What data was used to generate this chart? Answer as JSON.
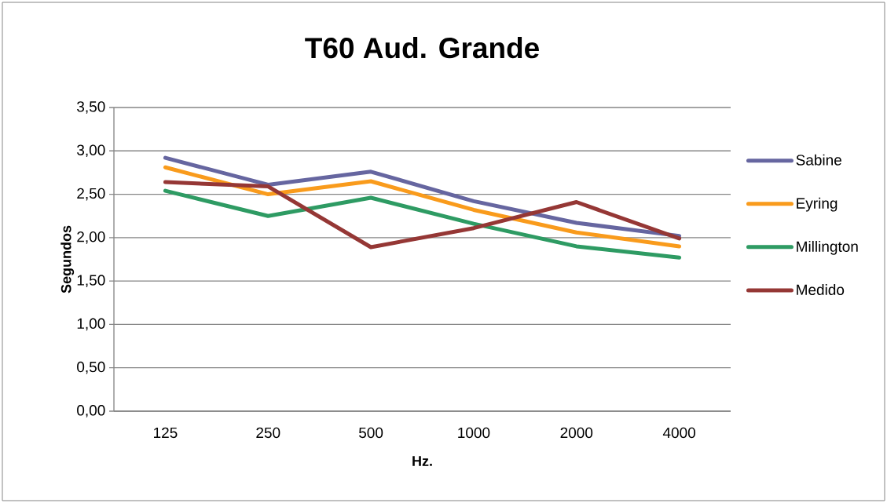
{
  "chart_data": {
    "type": "line",
    "title": "T60 Aud. Grande",
    "xlabel": "Hz.",
    "ylabel": "Segundos",
    "categories": [
      "125",
      "250",
      "500",
      "1000",
      "2000",
      "4000"
    ],
    "series": [
      {
        "name": "Sabine",
        "color": "#6666a0",
        "values": [
          2.92,
          2.61,
          2.76,
          2.42,
          2.17,
          2.02
        ]
      },
      {
        "name": "Eyring",
        "color": "#f99b1c",
        "values": [
          2.81,
          2.5,
          2.65,
          2.32,
          2.06,
          1.9
        ]
      },
      {
        "name": "Millington",
        "color": "#2e9b63",
        "values": [
          2.54,
          2.25,
          2.46,
          2.16,
          1.9,
          1.77
        ]
      },
      {
        "name": "Medido",
        "color": "#953735",
        "values": [
          2.64,
          2.59,
          1.89,
          2.11,
          2.41,
          1.99
        ]
      }
    ],
    "ylim": [
      0,
      3.5
    ],
    "yticks": [
      {
        "value": 0,
        "label": "0,00"
      },
      {
        "value": 0.5,
        "label": "0,50"
      },
      {
        "value": 1,
        "label": "1,00"
      },
      {
        "value": 1.5,
        "label": "1,50"
      },
      {
        "value": 2,
        "label": "2,00"
      },
      {
        "value": 2.5,
        "label": "2,50"
      },
      {
        "value": 3,
        "label": "3,00"
      },
      {
        "value": 3.5,
        "label": "3,50"
      }
    ],
    "grid": "y",
    "legend": "right",
    "marker": "none",
    "line_style": "solid"
  }
}
